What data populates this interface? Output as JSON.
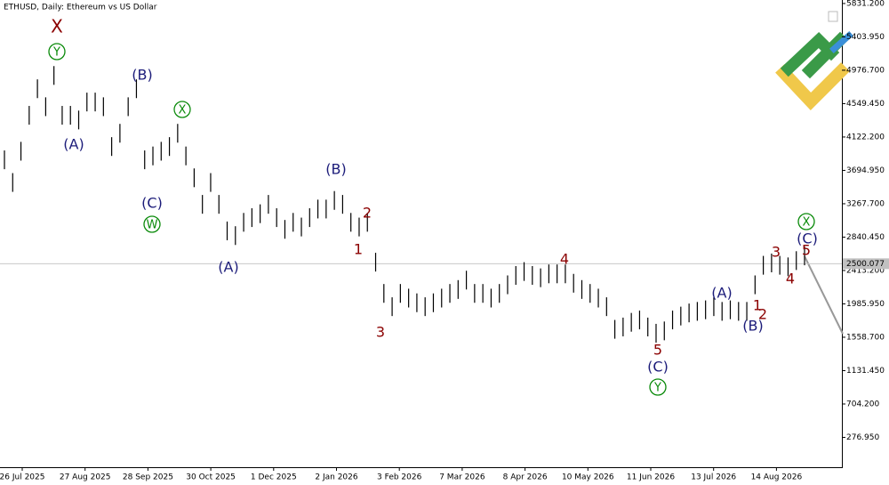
{
  "chart_data": {
    "type": "ohlc",
    "title": "ETHUSD, Daily:  Ethereum vs US Dollar",
    "categories": [
      "26 Jul 2025",
      "27 Aug 2025",
      "28 Sep 2025",
      "30 Oct 2025",
      "1 Dec 2025",
      "2 Jan 2026",
      "3 Feb 2026",
      "7 Mar 2026",
      "8 Apr 2026",
      "10 May 2026",
      "11 Jun 2026",
      "13 Jul 2026",
      "14 Aug 2026"
    ],
    "series": [
      {
        "name": "ETHUSD",
        "color": "#000000",
        "high": [
          3950,
          3660,
          4060,
          4520,
          4860,
          4630,
          5030,
          4520,
          4520,
          4460,
          4690,
          4690,
          4630,
          4120,
          4290,
          4630,
          4860,
          3950,
          4000,
          4060,
          4120,
          4290,
          4000,
          3720,
          3380,
          3660,
          3380,
          3040,
          2980,
          3150,
          3210,
          3260,
          3380,
          3210,
          3060,
          3150,
          3090,
          3210,
          3320,
          3320,
          3430,
          3380,
          3150,
          3090,
          3150,
          2640,
          2240,
          2070,
          2240,
          2180,
          2120,
          2070,
          2120,
          2180,
          2240,
          2290,
          2410,
          2240,
          2240,
          2180,
          2240,
          2350,
          2470,
          2520,
          2470,
          2440,
          2490,
          2490,
          2490,
          2370,
          2290,
          2240,
          2180,
          2070,
          1780,
          1810,
          1870,
          1900,
          1810,
          1730,
          1760,
          1900,
          1950,
          1990,
          2010,
          2030,
          2070,
          2010,
          2030,
          2010,
          2010,
          2350,
          2600,
          2630,
          2600,
          2580,
          2660,
          2720
        ],
        "low": [
          3710,
          3420,
          3820,
          4280,
          4620,
          4390,
          4790,
          4280,
          4280,
          4220,
          4450,
          4450,
          4390,
          3880,
          4050,
          4390,
          4620,
          3710,
          3760,
          3820,
          3880,
          4050,
          3760,
          3480,
          3140,
          3420,
          3140,
          2800,
          2740,
          2910,
          2970,
          3020,
          3140,
          2970,
          2820,
          2910,
          2850,
          2970,
          3080,
          3080,
          3190,
          3140,
          2910,
          2850,
          2910,
          2400,
          2000,
          1830,
          2000,
          1940,
          1880,
          1830,
          1880,
          1940,
          2000,
          2050,
          2170,
          2000,
          2000,
          1940,
          2000,
          2110,
          2230,
          2280,
          2230,
          2200,
          2250,
          2250,
          2250,
          2130,
          2050,
          2000,
          1940,
          1830,
          1540,
          1570,
          1630,
          1660,
          1570,
          1490,
          1520,
          1660,
          1710,
          1750,
          1770,
          1790,
          1830,
          1770,
          1790,
          1770,
          1770,
          2110,
          2360,
          2390,
          2360,
          2340,
          2420,
          2480
        ]
      }
    ],
    "current_price": 2500.077,
    "ylim": [
      -105,
      5876
    ],
    "yticks": [
      {
        "value": 276.95,
        "label": "276.950"
      },
      {
        "value": 704.2,
        "label": "704.200"
      },
      {
        "value": 1131.45,
        "label": "1131.450"
      },
      {
        "value": 1558.7,
        "label": "1558.700"
      },
      {
        "value": 1985.95,
        "label": "1985.950"
      },
      {
        "value": 2413.2,
        "label": "2413.200"
      },
      {
        "value": 2840.45,
        "label": "2840.450"
      },
      {
        "value": 3267.7,
        "label": "3267.700"
      },
      {
        "value": 3694.95,
        "label": "3694.950"
      },
      {
        "value": 4122.2,
        "label": "4122.200"
      },
      {
        "value": 4549.45,
        "label": "4549.450"
      },
      {
        "value": 4976.7,
        "label": "4976.700"
      },
      {
        "value": 5403.95,
        "label": "5403.950"
      },
      {
        "value": 5831.2,
        "label": "5831.200"
      }
    ],
    "annotations": [
      {
        "text": "X",
        "color": "#8b0000",
        "circled": false
      },
      {
        "text": "Y",
        "color": "#0a8a0a",
        "circled": true
      },
      {
        "text": "(A)",
        "color": "#1c1c7a",
        "circled": false
      },
      {
        "text": "(B)",
        "color": "#1c1c7a",
        "circled": false
      },
      {
        "text": "(C)",
        "color": "#1c1c7a",
        "circled": false
      },
      {
        "text": "W",
        "color": "#0a8a0a",
        "circled": true
      },
      {
        "text": "X",
        "color": "#0a8a0a",
        "circled": true
      },
      {
        "text": "(A)",
        "color": "#1c1c7a",
        "circled": false
      },
      {
        "text": "(B)",
        "color": "#1c1c7a",
        "circled": false
      },
      {
        "text": "2",
        "color": "#8b0000",
        "circled": false
      },
      {
        "text": "1",
        "color": "#8b0000",
        "circled": false
      },
      {
        "text": "3",
        "color": "#8b0000",
        "circled": false
      },
      {
        "text": "4",
        "color": "#8b0000",
        "circled": false
      },
      {
        "text": "5",
        "color": "#8b0000",
        "circled": false
      },
      {
        "text": "(C)",
        "color": "#1c1c7a",
        "circled": false
      },
      {
        "text": "Y",
        "color": "#0a8a0a",
        "circled": true
      },
      {
        "text": "(A)",
        "color": "#1c1c7a",
        "circled": false
      },
      {
        "text": "1",
        "color": "#8b0000",
        "circled": false
      },
      {
        "text": "2",
        "color": "#8b0000",
        "circled": false
      },
      {
        "text": "(B)",
        "color": "#1c1c7a",
        "circled": false
      },
      {
        "text": "3",
        "color": "#8b0000",
        "circled": false
      },
      {
        "text": "4",
        "color": "#8b0000",
        "circled": false
      },
      {
        "text": "5",
        "color": "#8b0000",
        "circled": false
      },
      {
        "text": "(C)",
        "color": "#1c1c7a",
        "circled": false
      },
      {
        "text": "X",
        "color": "#0a8a0a",
        "circled": true
      }
    ]
  }
}
